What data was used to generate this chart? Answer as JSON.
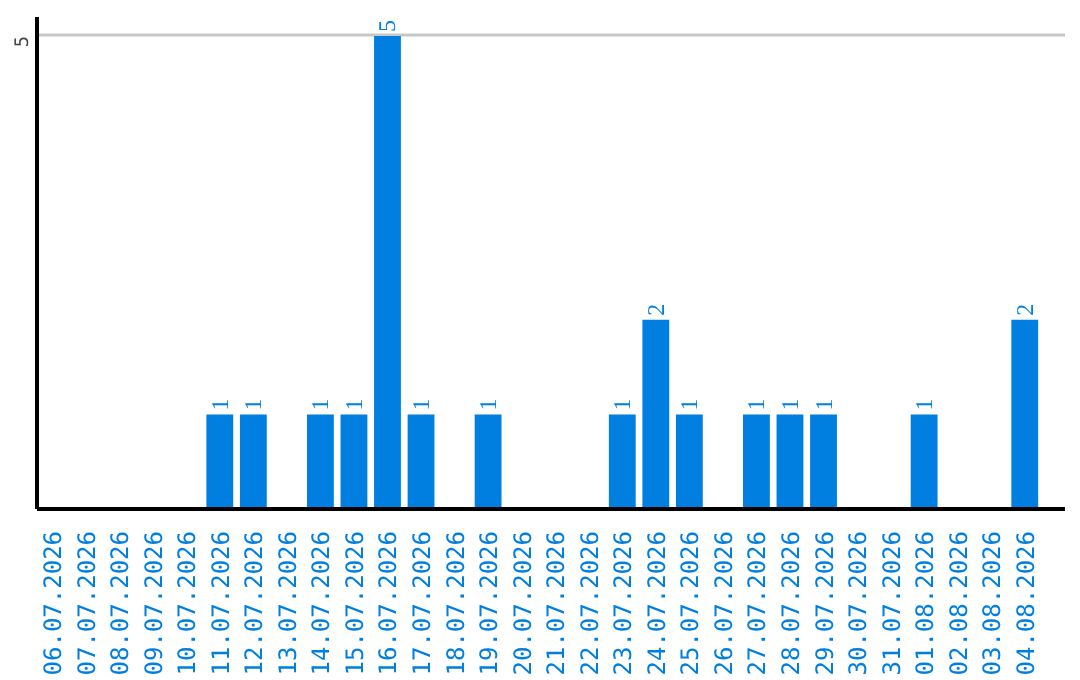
{
  "chart_data": {
    "type": "bar",
    "categories": [
      "06.07.2026",
      "07.07.2026",
      "08.07.2026",
      "09.07.2026",
      "10.07.2026",
      "11.07.2026",
      "12.07.2026",
      "13.07.2026",
      "14.07.2026",
      "15.07.2026",
      "16.07.2026",
      "17.07.2026",
      "18.07.2026",
      "19.07.2026",
      "20.07.2026",
      "21.07.2026",
      "22.07.2026",
      "23.07.2026",
      "24.07.2026",
      "25.07.2026",
      "26.07.2026",
      "27.07.2026",
      "28.07.2026",
      "29.07.2026",
      "30.07.2026",
      "31.07.2026",
      "01.08.2026",
      "02.08.2026",
      "03.08.2026",
      "04.08.2026"
    ],
    "values": [
      0,
      0,
      0,
      0,
      0,
      1,
      1,
      0,
      1,
      1,
      5,
      1,
      0,
      1,
      0,
      0,
      0,
      1,
      2,
      1,
      0,
      1,
      1,
      1,
      0,
      0,
      1,
      0,
      0,
      2
    ],
    "value_labels": [
      null,
      null,
      null,
      null,
      null,
      "1",
      "1",
      null,
      "1",
      "1",
      "5",
      "1",
      null,
      "1",
      null,
      null,
      null,
      "1",
      "2",
      "1",
      null,
      "1",
      "1",
      "1",
      null,
      null,
      "1",
      null,
      null,
      "2"
    ],
    "color": "#007fe0",
    "ylim": [
      0,
      5.2
    ],
    "yticks": [
      5
    ],
    "grid": "y"
  }
}
